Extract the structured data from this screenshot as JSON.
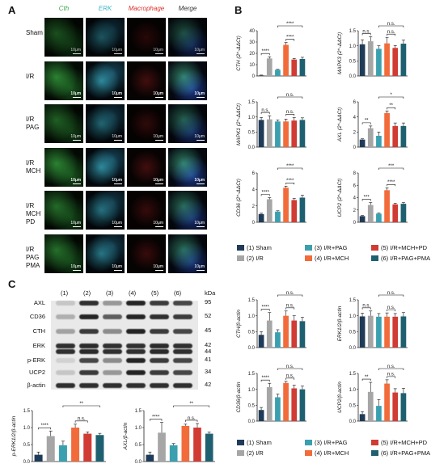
{
  "panels": {
    "a": "A",
    "b": "B",
    "c": "C"
  },
  "panel_a": {
    "columns": [
      {
        "label": "Cth",
        "color": "#3aa64b"
      },
      {
        "label": "ERK",
        "color": "#3fb6c8"
      },
      {
        "label": "Macrophage",
        "color": "#d9312b"
      },
      {
        "label": "Merge",
        "color": "#333333"
      }
    ],
    "rows": [
      "Sham",
      "I/R",
      "I/R\nPAG",
      "I/R\nMCH",
      "I/R\nMCH\nPD",
      "I/R\nPAG\nPMA"
    ],
    "scale_label": "10μm"
  },
  "colors": {
    "sham": "#1f3b57",
    "ir": "#a6a6a6",
    "ir_pag": "#3aa0b0",
    "ir_mch": "#f26b3a",
    "ir_mch_pd": "#d03b33",
    "ir_pag_pma": "#1e6070"
  },
  "legend": [
    {
      "label": "(1) Sham",
      "color": "#1f3b57"
    },
    {
      "label": "(2) I/R",
      "color": "#a6a6a6"
    },
    {
      "label": "(3) I/R+PAG",
      "color": "#3aa0b0"
    },
    {
      "label": "(4) I/R+MCH",
      "color": "#f26b3a"
    },
    {
      "label": "(5) I/R+MCH+PD",
      "color": "#d03b33"
    },
    {
      "label": "(6) I/R+PAG+PMA",
      "color": "#1e6070"
    }
  ],
  "western_blot": {
    "lanes": [
      "(1)",
      "(2)",
      "(3)",
      "(4)",
      "(5)",
      "(6)"
    ],
    "unit": "kDa",
    "proteins": [
      {
        "name": "AXL",
        "kda": "95"
      },
      {
        "name": "CD36",
        "kda": "52"
      },
      {
        "name": "CTH",
        "kda": "45"
      },
      {
        "name": "ERK",
        "kda": "42\n44"
      },
      {
        "name": "p-ERK",
        "kda": "41"
      },
      {
        "name": "UCP2",
        "kda": "34"
      },
      {
        "name": "β-actin",
        "kda": "42"
      }
    ]
  },
  "chart_data": [
    {
      "id": "b1",
      "type": "bar",
      "ylabel": "CTH (2^-ΔΔCt)",
      "ylim": [
        0,
        40
      ],
      "yticks": [
        0,
        10,
        20,
        30,
        40
      ],
      "values": [
        0.5,
        15.5,
        5.5,
        27.5,
        14.5,
        15
      ],
      "errors": [
        0.3,
        1.5,
        0.4,
        2.0,
        1.0,
        1.5
      ],
      "sig": [
        {
          "a": 0,
          "b": 1,
          "label": "****",
          "level": 0
        },
        {
          "a": 2,
          "b": 5,
          "label": "****",
          "level": 1
        },
        {
          "a": 3,
          "b": 4,
          "label": "****",
          "level": 0
        }
      ]
    },
    {
      "id": "b2",
      "type": "bar",
      "ylabel": "MAPK3 (2^-ΔΔCt)",
      "ylim": [
        0,
        1.5
      ],
      "yticks": [
        0.0,
        0.5,
        1.0,
        1.5
      ],
      "values": [
        1.05,
        1.15,
        0.9,
        1.08,
        0.93,
        1.07
      ],
      "errors": [
        0.15,
        0.15,
        0.1,
        0.2,
        0.08,
        0.12
      ],
      "sig": [
        {
          "a": 0,
          "b": 1,
          "label": "n.s.",
          "level": 0
        },
        {
          "a": 2,
          "b": 5,
          "label": "n.s.",
          "level": 1
        },
        {
          "a": 3,
          "b": 4,
          "label": "n.s.",
          "level": 0
        }
      ]
    },
    {
      "id": "b3",
      "type": "bar",
      "ylabel": "MAPK1 (2^-ΔΔCt)",
      "ylim": [
        0,
        1.5
      ],
      "yticks": [
        0.0,
        0.5,
        1.0,
        1.5
      ],
      "values": [
        0.9,
        0.92,
        0.85,
        0.85,
        0.88,
        0.9
      ],
      "errors": [
        0.08,
        0.12,
        0.05,
        0.08,
        0.1,
        0.07
      ],
      "sig": [
        {
          "a": 0,
          "b": 1,
          "label": "n.s.",
          "level": 0
        },
        {
          "a": 2,
          "b": 5,
          "label": "n.s.",
          "level": 1
        },
        {
          "a": 3,
          "b": 4,
          "label": "n.s.",
          "level": 0
        }
      ]
    },
    {
      "id": "b4",
      "type": "bar",
      "ylabel": "AXL (2^-ΔΔCt)",
      "ylim": [
        0,
        6
      ],
      "yticks": [
        0,
        2,
        4,
        6
      ],
      "values": [
        1.0,
        2.5,
        1.5,
        4.5,
        2.8,
        2.8
      ],
      "errors": [
        0.1,
        0.3,
        0.5,
        0.3,
        0.4,
        0.4
      ],
      "sig": [
        {
          "a": 0,
          "b": 1,
          "label": "**",
          "level": 0
        },
        {
          "a": 2,
          "b": 5,
          "label": "*",
          "level": 1
        },
        {
          "a": 3,
          "b": 4,
          "label": "**",
          "level": 0
        }
      ]
    },
    {
      "id": "b5",
      "type": "bar",
      "ylabel": "CD36 (2^-ΔΔCt)",
      "ylim": [
        0,
        6
      ],
      "yticks": [
        0,
        2,
        4,
        6
      ],
      "values": [
        1.0,
        2.8,
        1.3,
        4.2,
        2.7,
        3.0
      ],
      "errors": [
        0.1,
        0.2,
        0.1,
        0.2,
        0.2,
        0.3
      ],
      "sig": [
        {
          "a": 0,
          "b": 1,
          "label": "****",
          "level": 0
        },
        {
          "a": 2,
          "b": 5,
          "label": "****",
          "level": 1
        },
        {
          "a": 3,
          "b": 4,
          "label": "****",
          "level": 0
        }
      ]
    },
    {
      "id": "b6",
      "type": "bar",
      "ylabel": "UCP2 (2^-ΔΔCt)",
      "ylim": [
        0,
        8
      ],
      "yticks": [
        0,
        2,
        4,
        6,
        8
      ],
      "values": [
        1.0,
        2.8,
        1.4,
        5.2,
        2.9,
        3.0
      ],
      "errors": [
        0.1,
        0.4,
        0.1,
        0.4,
        0.2,
        0.2
      ],
      "sig": [
        {
          "a": 0,
          "b": 1,
          "label": "***",
          "level": 0
        },
        {
          "a": 2,
          "b": 5,
          "label": "***",
          "level": 1
        },
        {
          "a": 3,
          "b": 4,
          "label": "****",
          "level": 0
        }
      ]
    },
    {
      "id": "c1",
      "type": "bar",
      "ylabel": "CTH/β-actin",
      "ylim": [
        0,
        1.5
      ],
      "yticks": [
        0.0,
        0.5,
        1.0,
        1.5
      ],
      "values": [
        0.4,
        0.85,
        0.48,
        1.0,
        0.85,
        0.83
      ],
      "errors": [
        0.1,
        0.25,
        0.08,
        0.15,
        0.15,
        0.12
      ],
      "sig": [
        {
          "a": 0,
          "b": 1,
          "label": "****",
          "level": 0
        },
        {
          "a": 2,
          "b": 5,
          "label": "n.s.",
          "level": 1
        },
        {
          "a": 3,
          "b": 4,
          "label": "n.s.",
          "level": 0
        }
      ]
    },
    {
      "id": "c2",
      "type": "bar",
      "ylabel": "ERK1/2/β-actin",
      "ylim": [
        0,
        1.5
      ],
      "yticks": [
        0.0,
        0.5,
        1.0,
        1.5
      ],
      "values": [
        0.98,
        1.0,
        0.97,
        0.97,
        0.97,
        0.98
      ],
      "errors": [
        0.1,
        0.15,
        0.1,
        0.12,
        0.1,
        0.12
      ],
      "sig": [
        {
          "a": 0,
          "b": 1,
          "label": "n.s.",
          "level": 0
        },
        {
          "a": 2,
          "b": 5,
          "label": "n.s.",
          "level": 1
        },
        {
          "a": 3,
          "b": 4,
          "label": "n.s.",
          "level": 0
        }
      ]
    },
    {
      "id": "c3",
      "type": "bar",
      "ylabel": "CD36/β-actin",
      "ylim": [
        0,
        1.5
      ],
      "yticks": [
        0.0,
        0.5,
        1.0,
        1.5
      ],
      "values": [
        0.35,
        1.07,
        0.75,
        1.2,
        1.03,
        1.0
      ],
      "errors": [
        0.08,
        0.12,
        0.1,
        0.05,
        0.1,
        0.1
      ],
      "sig": [
        {
          "a": 0,
          "b": 1,
          "label": "****",
          "level": 0
        },
        {
          "a": 2,
          "b": 5,
          "label": "n.s.",
          "level": 1
        },
        {
          "a": 3,
          "b": 4,
          "label": "n.s.",
          "level": 0
        }
      ]
    },
    {
      "id": "c4",
      "type": "bar",
      "ylabel": "UCP2/β-actin",
      "ylim": [
        0,
        1.5
      ],
      "yticks": [
        0.0,
        0.5,
        1.0,
        1.5
      ],
      "values": [
        0.22,
        0.92,
        0.48,
        1.18,
        0.9,
        0.88
      ],
      "errors": [
        0.08,
        0.3,
        0.2,
        0.12,
        0.12,
        0.15
      ],
      "sig": [
        {
          "a": 0,
          "b": 1,
          "label": "**",
          "level": 0
        },
        {
          "a": 2,
          "b": 5,
          "label": "n.s.",
          "level": 1
        },
        {
          "a": 3,
          "b": 4,
          "label": "n.s.",
          "level": 0
        }
      ]
    },
    {
      "id": "c5",
      "type": "bar",
      "ylabel": "p-ERK1/2/β-actin",
      "ylim": [
        0,
        1.5
      ],
      "yticks": [
        0.0,
        0.5,
        1.0,
        1.5
      ],
      "values": [
        0.2,
        0.75,
        0.48,
        1.0,
        0.82,
        0.78
      ],
      "errors": [
        0.08,
        0.15,
        0.12,
        0.1,
        0.05,
        0.05
      ],
      "sig": [
        {
          "a": 0,
          "b": 1,
          "label": "****",
          "level": 0
        },
        {
          "a": 2,
          "b": 5,
          "label": "**",
          "level": 1
        },
        {
          "a": 3,
          "b": 4,
          "label": "n.s.",
          "level": 0
        }
      ]
    },
    {
      "id": "c6",
      "type": "bar",
      "ylabel": "AXL/β-actin",
      "ylim": [
        0,
        1.5
      ],
      "yticks": [
        0.0,
        0.5,
        1.0,
        1.5
      ],
      "values": [
        0.2,
        0.85,
        0.48,
        1.05,
        1.0,
        0.82
      ],
      "errors": [
        0.08,
        0.3,
        0.05,
        0.05,
        0.12,
        0.05
      ],
      "sig": [
        {
          "a": 0,
          "b": 1,
          "label": "****",
          "level": 0
        },
        {
          "a": 2,
          "b": 5,
          "label": "**",
          "level": 1
        },
        {
          "a": 3,
          "b": 4,
          "label": "n.s.",
          "level": 0
        }
      ]
    }
  ]
}
